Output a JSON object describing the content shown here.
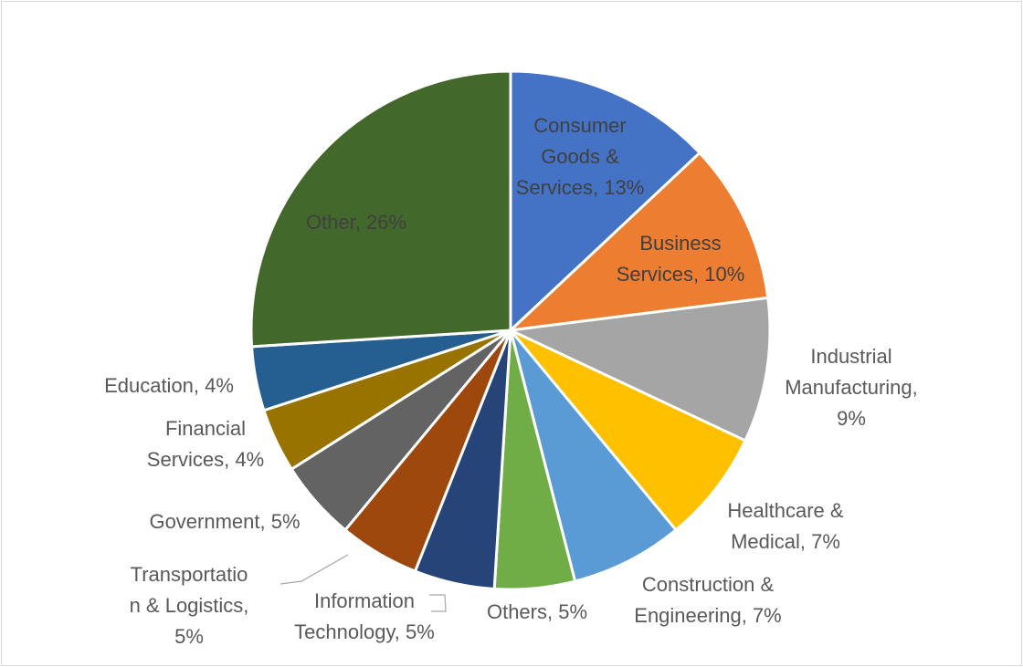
{
  "chart_data": {
    "type": "pie",
    "title": "",
    "start_angle_deg": 0,
    "direction": "clockwise",
    "slices": [
      {
        "name": "Consumer Goods & Services",
        "value": 13,
        "label_lines": [
          "Consumer",
          "Goods &",
          "Services, 13%"
        ],
        "color": "#4472C4"
      },
      {
        "name": "Business Services",
        "value": 10,
        "label_lines": [
          "Business",
          "Services, 10%"
        ],
        "color": "#ED7D31"
      },
      {
        "name": "Industrial Manufacturing",
        "value": 9,
        "label_lines": [
          "Industrial",
          "Manufacturing,",
          "9%"
        ],
        "color": "#A5A5A5"
      },
      {
        "name": "Healthcare & Medical",
        "value": 7,
        "label_lines": [
          "Healthcare &",
          "Medical, 7%"
        ],
        "color": "#FFC000"
      },
      {
        "name": "Construction & Engineering",
        "value": 7,
        "label_lines": [
          "Construction &",
          "Engineering, 7%"
        ],
        "color": "#5B9BD5"
      },
      {
        "name": "Others",
        "value": 5,
        "label_lines": [
          "Others, 5%"
        ],
        "color": "#70AD47"
      },
      {
        "name": "Information Technology",
        "value": 5,
        "label_lines": [
          "Information",
          "Technology, 5%"
        ],
        "color": "#264478"
      },
      {
        "name": "Transportation & Logistics",
        "value": 5,
        "label_lines": [
          "Transportatio",
          "n & Logistics,",
          "5%"
        ],
        "color": "#9E480E"
      },
      {
        "name": "Government",
        "value": 5,
        "label_lines": [
          "Government, 5%"
        ],
        "color": "#636363"
      },
      {
        "name": "Financial Services",
        "value": 4,
        "label_lines": [
          "Financial",
          "Services, 4%"
        ],
        "color": "#997300"
      },
      {
        "name": "Education",
        "value": 4,
        "label_lines": [
          "Education, 4%"
        ],
        "color": "#255E91"
      },
      {
        "name": "Other",
        "value": 26,
        "label_lines": [
          "Other, 26%"
        ],
        "color": "#43682B"
      }
    ]
  }
}
